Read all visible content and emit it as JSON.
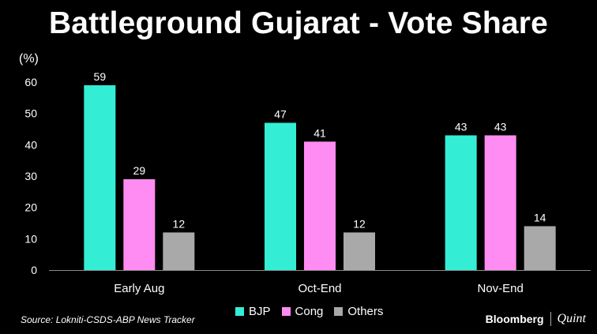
{
  "title": "Battleground Gujarat - Vote Share",
  "source": "Source: Lokniti-CSDS-ABP News Tracker",
  "brand": {
    "primary": "Bloomberg",
    "secondary": "Quint"
  },
  "chart_data": {
    "type": "bar",
    "ylabel": "(%)",
    "ylim": [
      0,
      60
    ],
    "yticks": [
      0,
      10,
      20,
      30,
      40,
      50,
      60
    ],
    "grid": false,
    "legend_position": "bottom-center",
    "categories": [
      "Early Aug",
      "Oct-End",
      "Nov-End"
    ],
    "series": [
      {
        "name": "BJP",
        "color": "#33EED5",
        "values": [
          59,
          47,
          43
        ]
      },
      {
        "name": "Cong",
        "color": "#FF8CF2",
        "values": [
          29,
          41,
          43
        ]
      },
      {
        "name": "Others",
        "color": "#A9A9A9",
        "values": [
          12,
          12,
          14
        ]
      }
    ]
  }
}
